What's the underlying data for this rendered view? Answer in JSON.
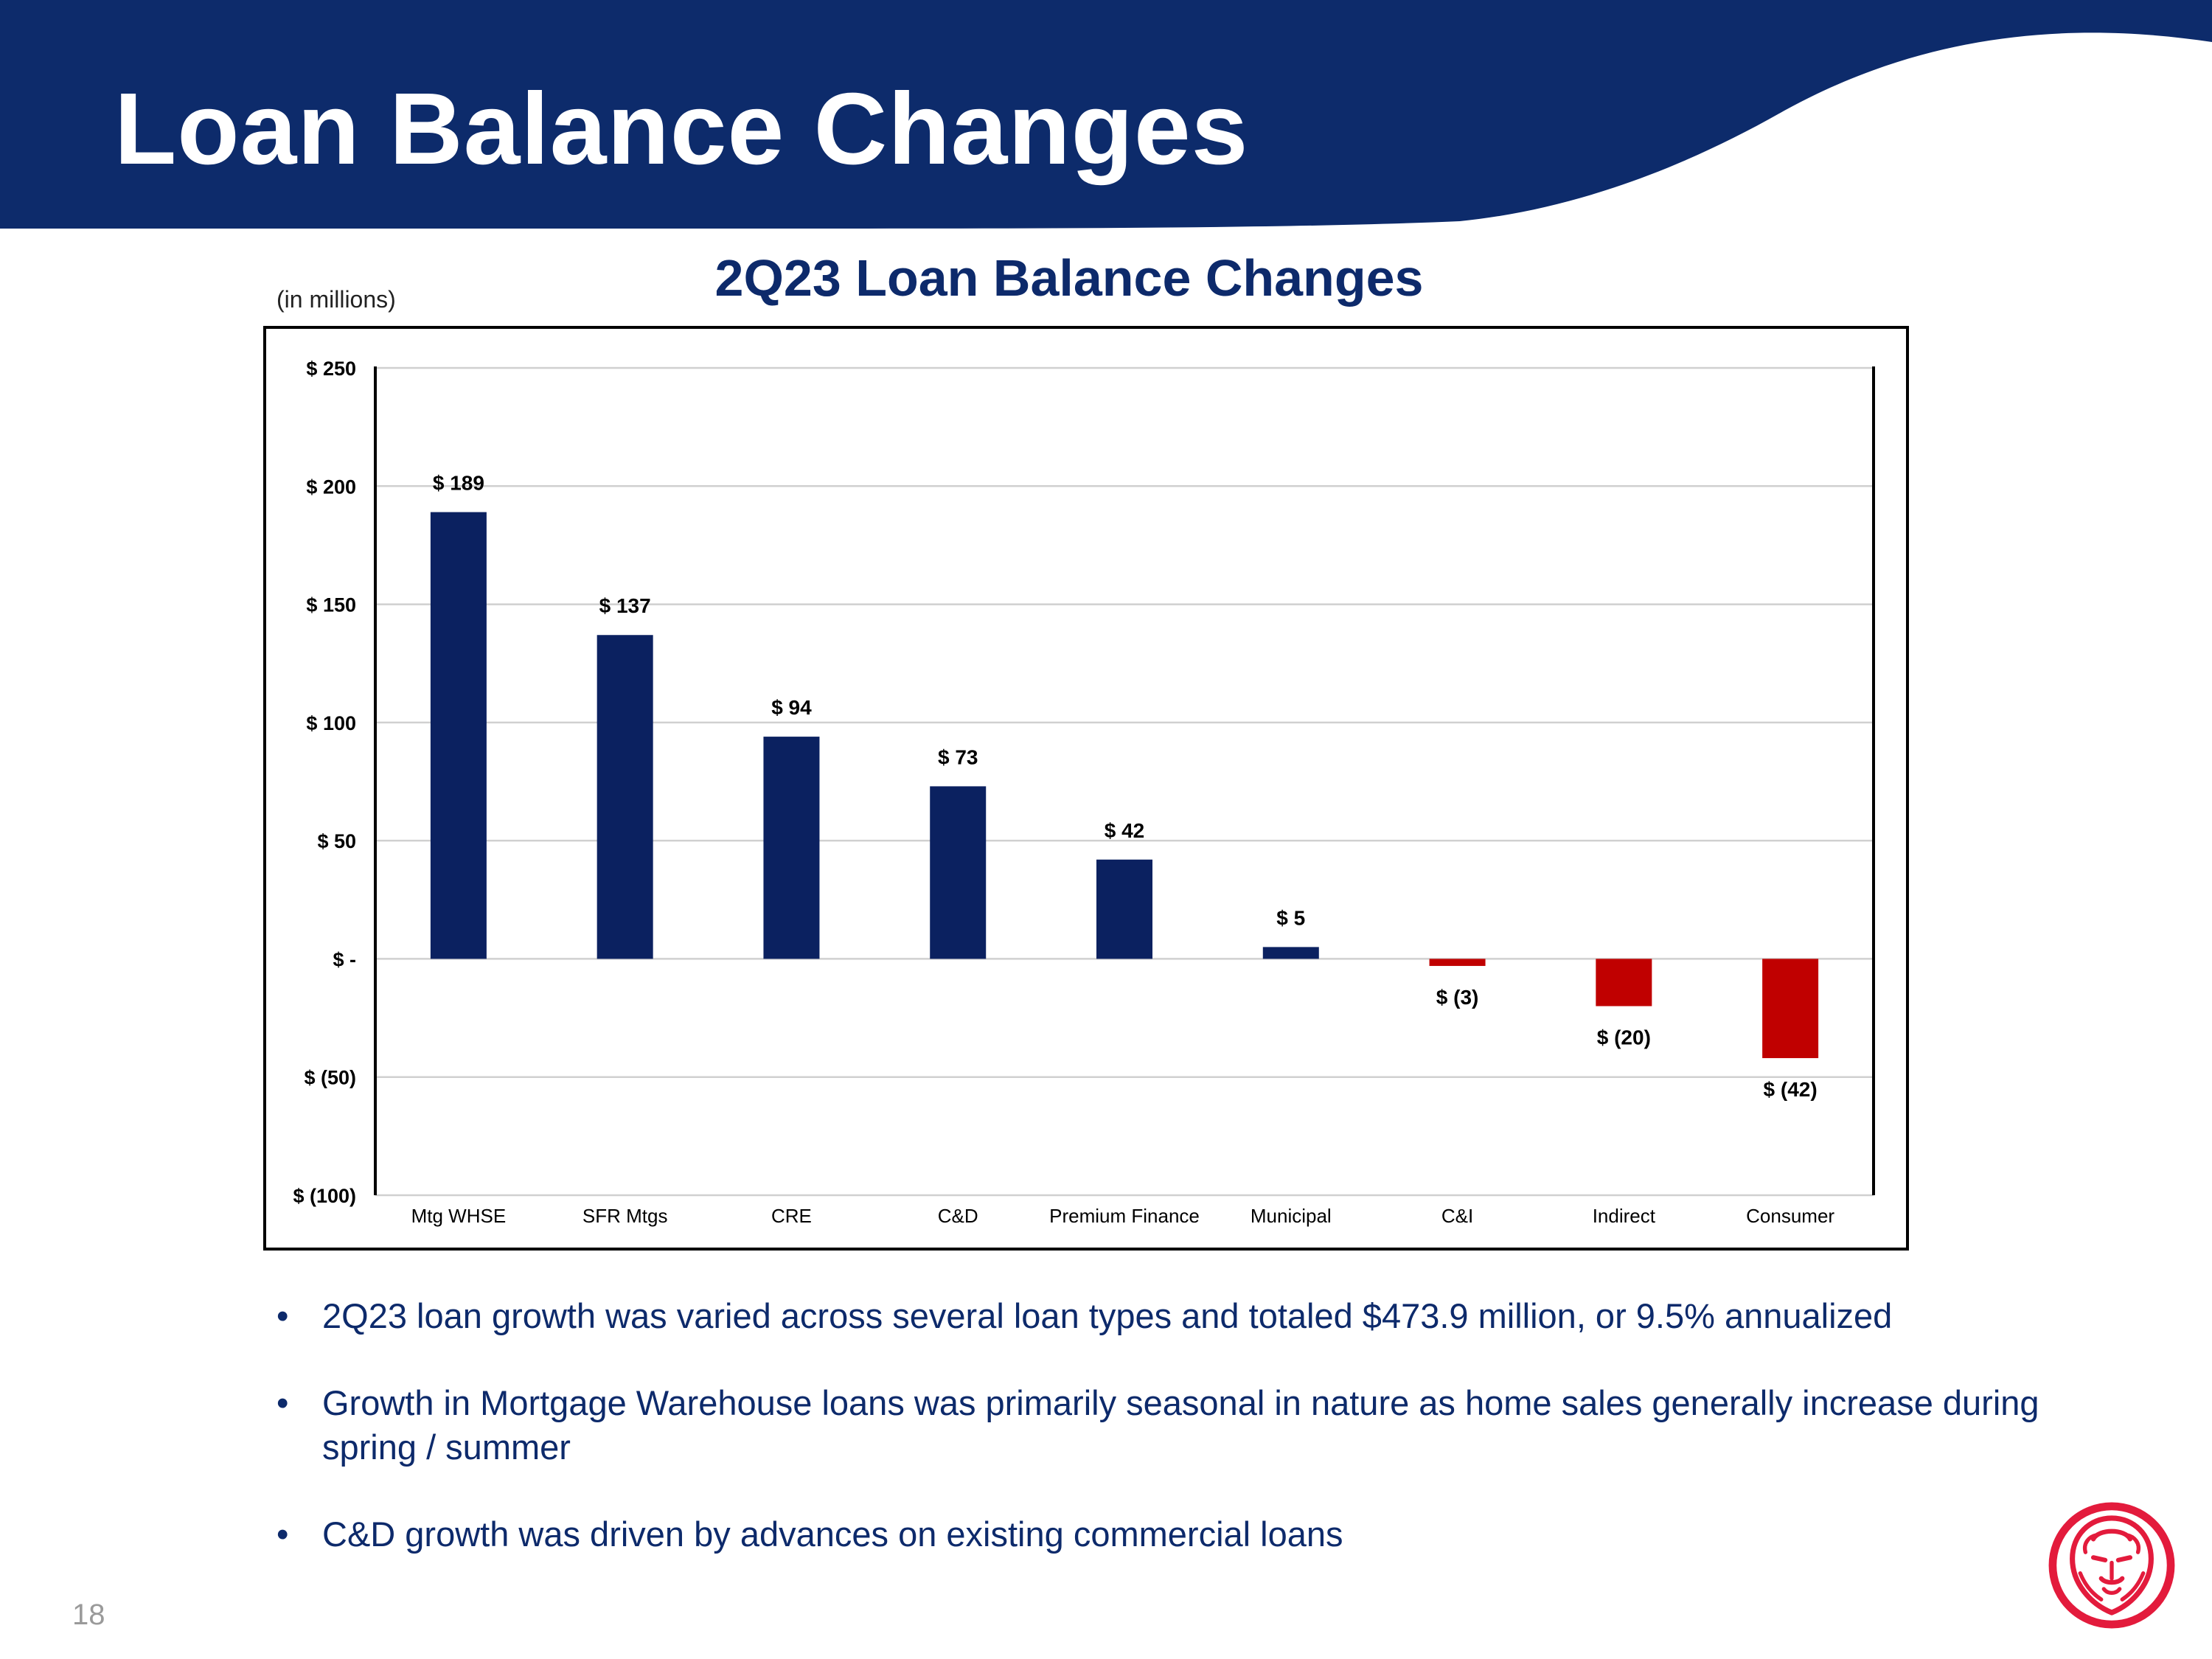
{
  "slide": {
    "title": "Loan Balance Changes",
    "units_note": "(in millions)",
    "page_number": "18"
  },
  "colors": {
    "header_navy": "#0d2b6b",
    "positive_bar": "#0b2160",
    "negative_bar": "#c00000",
    "text_navy": "#0d2a6b",
    "logo_red": "#e31b3c"
  },
  "icons": {
    "logo": "lion-head-logo"
  },
  "chart_data": {
    "type": "bar",
    "title": "2Q23 Loan Balance Changes",
    "xlabel": "",
    "ylabel": "",
    "categories": [
      "Mtg WHSE",
      "SFR Mtgs",
      "CRE",
      "C&D",
      "Premium Finance",
      "Municipal",
      "C&I",
      "Indirect",
      "Consumer"
    ],
    "values": [
      189,
      137,
      94,
      73,
      42,
      5,
      -3,
      -20,
      -42
    ],
    "data_labels": [
      "$ 189",
      "$ 137",
      "$ 94",
      "$ 73",
      "$ 42",
      "$ 5",
      "$ (3)",
      "$ (20)",
      "$ (42)"
    ],
    "ylim": [
      -100,
      250
    ],
    "yticks": [
      250,
      200,
      150,
      100,
      50,
      0,
      -50,
      -100
    ],
    "ytick_labels": [
      "$ 250",
      "$ 200",
      "$ 150",
      "$ 100",
      "$ 50",
      "$ -",
      "$ (50)",
      "$ (100)"
    ],
    "grid": true,
    "legend": "none"
  },
  "bullets": [
    "2Q23 loan growth was varied across several loan types and totaled $473.9 million, or 9.5% annualized",
    "Growth in Mortgage Warehouse loans was primarily seasonal in nature as home sales generally increase during spring / summer",
    "C&D growth was driven by advances on existing commercial loans"
  ],
  "bullet_marker": "•"
}
